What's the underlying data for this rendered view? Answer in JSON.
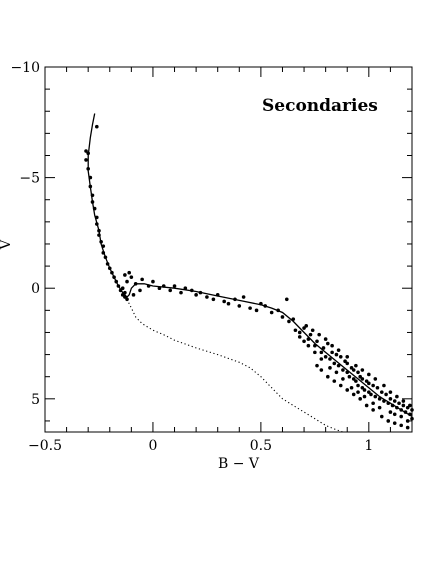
{
  "chart_data": {
    "type": "scatter",
    "title": "Secondaries",
    "xlabel": "B − V",
    "ylabel": "V",
    "xlim": [
      -0.5,
      1.2
    ],
    "ylim": [
      6.5,
      -10
    ],
    "y_axis_inverted": true,
    "grid": false,
    "x_ticks": [
      {
        "value": -0.5,
        "label": "−0.5"
      },
      {
        "value": 0,
        "label": "0"
      },
      {
        "value": 0.5,
        "label": "0.5"
      },
      {
        "value": 1,
        "label": "1"
      }
    ],
    "y_ticks": [
      {
        "value": -10,
        "label": "−10"
      },
      {
        "value": -5,
        "label": "−5"
      },
      {
        "value": 0,
        "label": "0"
      },
      {
        "value": 5,
        "label": "5"
      }
    ],
    "series": [
      {
        "style": "points",
        "color": "#000000",
        "points": [
          [
            -0.31,
            -6.2
          ],
          [
            -0.31,
            -5.8
          ],
          [
            -0.3,
            -5.4
          ],
          [
            -0.3,
            -6.1
          ],
          [
            -0.29,
            -5.0
          ],
          [
            -0.29,
            -4.6
          ],
          [
            -0.28,
            -4.2
          ],
          [
            -0.28,
            -3.9
          ],
          [
            -0.27,
            -3.6
          ],
          [
            -0.26,
            -3.2
          ],
          [
            -0.26,
            -2.9
          ],
          [
            -0.25,
            -2.6
          ],
          [
            -0.25,
            -2.4
          ],
          [
            -0.24,
            -2.1
          ],
          [
            -0.23,
            -1.9
          ],
          [
            -0.23,
            -1.6
          ],
          [
            -0.22,
            -1.4
          ],
          [
            -0.21,
            -1.1
          ],
          [
            -0.2,
            -0.9
          ],
          [
            -0.19,
            -0.7
          ],
          [
            -0.18,
            -0.5
          ],
          [
            -0.17,
            -0.3
          ],
          [
            -0.16,
            -0.1
          ],
          [
            -0.15,
            0.1
          ],
          [
            -0.14,
            0.3
          ],
          [
            -0.13,
            0.4
          ],
          [
            -0.12,
            0.5
          ],
          [
            -0.13,
            0.2
          ],
          [
            -0.14,
            0.0
          ],
          [
            -0.12,
            -0.3
          ],
          [
            -0.1,
            -0.5
          ],
          [
            -0.11,
            -0.7
          ],
          [
            -0.13,
            -0.6
          ],
          [
            -0.08,
            -0.2
          ],
          [
            -0.05,
            -0.4
          ],
          [
            -0.02,
            -0.1
          ],
          [
            0.0,
            -0.3
          ],
          [
            0.03,
            0.0
          ],
          [
            -0.06,
            0.1
          ],
          [
            -0.09,
            0.3
          ],
          [
            -0.26,
            -7.3
          ],
          [
            0.05,
            -0.1
          ],
          [
            0.08,
            0.1
          ],
          [
            0.1,
            -0.1
          ],
          [
            0.13,
            0.2
          ],
          [
            0.15,
            0.0
          ],
          [
            0.18,
            0.1
          ],
          [
            0.2,
            0.3
          ],
          [
            0.22,
            0.2
          ],
          [
            0.25,
            0.4
          ],
          [
            0.28,
            0.5
          ],
          [
            0.3,
            0.3
          ],
          [
            0.33,
            0.6
          ],
          [
            0.35,
            0.7
          ],
          [
            0.38,
            0.5
          ],
          [
            0.4,
            0.8
          ],
          [
            0.42,
            0.4
          ],
          [
            0.45,
            0.9
          ],
          [
            0.48,
            1.0
          ],
          [
            0.5,
            0.7
          ],
          [
            0.52,
            0.8
          ],
          [
            0.55,
            1.1
          ],
          [
            0.58,
            1.0
          ],
          [
            0.6,
            1.3
          ],
          [
            0.62,
            0.5
          ],
          [
            0.63,
            1.5
          ],
          [
            0.65,
            1.4
          ],
          [
            0.66,
            1.9
          ],
          [
            0.68,
            2.0
          ],
          [
            0.7,
            1.8
          ],
          [
            0.72,
            2.3
          ],
          [
            0.73,
            2.1
          ],
          [
            0.75,
            2.6
          ],
          [
            0.76,
            2.4
          ],
          [
            0.78,
            2.9
          ],
          [
            0.79,
            2.7
          ],
          [
            0.8,
            3.1
          ],
          [
            0.81,
            2.5
          ],
          [
            0.82,
            3.2
          ],
          [
            0.83,
            2.9
          ],
          [
            0.84,
            3.4
          ],
          [
            0.85,
            3.0
          ],
          [
            0.86,
            3.5
          ],
          [
            0.87,
            3.1
          ],
          [
            0.88,
            3.7
          ],
          [
            0.89,
            3.3
          ],
          [
            0.9,
            3.8
          ],
          [
            0.9,
            3.4
          ],
          [
            0.91,
            4.0
          ],
          [
            0.92,
            3.6
          ],
          [
            0.93,
            4.1
          ],
          [
            0.93,
            3.7
          ],
          [
            0.94,
            4.2
          ],
          [
            0.95,
            3.8
          ],
          [
            0.95,
            4.4
          ],
          [
            0.96,
            4.0
          ],
          [
            0.97,
            4.5
          ],
          [
            0.97,
            4.1
          ],
          [
            0.98,
            4.6
          ],
          [
            0.99,
            4.2
          ],
          [
            1.0,
            4.7
          ],
          [
            1.0,
            4.3
          ],
          [
            1.01,
            4.8
          ],
          [
            1.02,
            4.4
          ],
          [
            1.03,
            4.9
          ],
          [
            1.04,
            4.5
          ],
          [
            1.05,
            5.0
          ],
          [
            1.06,
            4.7
          ],
          [
            1.07,
            5.1
          ],
          [
            1.08,
            4.8
          ],
          [
            1.09,
            5.2
          ],
          [
            1.1,
            5.0
          ],
          [
            1.11,
            5.3
          ],
          [
            1.12,
            5.1
          ],
          [
            1.13,
            5.4
          ],
          [
            1.14,
            5.2
          ],
          [
            1.15,
            5.5
          ],
          [
            1.16,
            5.3
          ],
          [
            1.17,
            5.6
          ],
          [
            1.18,
            5.4
          ],
          [
            1.19,
            5.7
          ],
          [
            1.2,
            5.5
          ],
          [
            1.2,
            5.9
          ],
          [
            1.18,
            6.0
          ],
          [
            1.15,
            5.8
          ],
          [
            1.12,
            5.7
          ],
          [
            1.1,
            5.6
          ],
          [
            1.05,
            5.4
          ],
          [
            1.02,
            5.2
          ],
          [
            0.98,
            4.9
          ],
          [
            0.95,
            4.7
          ],
          [
            0.92,
            4.5
          ],
          [
            0.88,
            4.1
          ],
          [
            0.85,
            3.8
          ],
          [
            0.82,
            3.6
          ],
          [
            0.78,
            3.2
          ],
          [
            0.75,
            2.9
          ],
          [
            0.72,
            2.6
          ],
          [
            0.7,
            2.4
          ],
          [
            0.68,
            2.2
          ],
          [
            1.0,
            3.9
          ],
          [
            0.97,
            3.7
          ],
          [
            1.03,
            4.1
          ],
          [
            1.07,
            4.4
          ],
          [
            1.1,
            4.7
          ],
          [
            1.13,
            4.9
          ],
          [
            1.16,
            5.1
          ],
          [
            1.19,
            5.3
          ],
          [
            0.94,
            3.5
          ],
          [
            0.9,
            3.1
          ],
          [
            0.86,
            2.8
          ],
          [
            0.83,
            2.6
          ],
          [
            0.8,
            2.3
          ],
          [
            0.77,
            2.1
          ],
          [
            0.74,
            1.9
          ],
          [
            0.71,
            1.7
          ],
          [
            0.96,
            5.0
          ],
          [
            0.99,
            5.3
          ],
          [
            1.02,
            5.5
          ],
          [
            1.06,
            5.8
          ],
          [
            1.09,
            6.0
          ],
          [
            1.12,
            6.1
          ],
          [
            1.15,
            6.2
          ],
          [
            1.18,
            6.3
          ],
          [
            0.93,
            4.8
          ],
          [
            0.9,
            4.6
          ],
          [
            0.87,
            4.4
          ],
          [
            0.84,
            4.2
          ],
          [
            0.81,
            4.0
          ],
          [
            0.78,
            3.7
          ],
          [
            0.76,
            3.5
          ]
        ]
      },
      {
        "style": "solid-line",
        "color": "#000000",
        "points": [
          [
            -0.27,
            -7.9
          ],
          [
            -0.28,
            -7.4
          ],
          [
            -0.29,
            -6.8
          ],
          [
            -0.3,
            -6.0
          ],
          [
            -0.3,
            -5.3
          ],
          [
            -0.29,
            -4.6
          ],
          [
            -0.28,
            -3.9
          ],
          [
            -0.27,
            -3.3
          ],
          [
            -0.25,
            -2.6
          ],
          [
            -0.24,
            -2.0
          ],
          [
            -0.22,
            -1.4
          ],
          [
            -0.2,
            -0.9
          ],
          [
            -0.18,
            -0.5
          ],
          [
            -0.16,
            -0.1
          ],
          [
            -0.14,
            0.2
          ],
          [
            -0.12,
            0.4
          ],
          [
            -0.11,
            0.3
          ],
          [
            -0.1,
            0.0
          ],
          [
            -0.08,
            -0.2
          ],
          [
            -0.04,
            -0.2
          ],
          [
            0.0,
            -0.1
          ],
          [
            0.1,
            0.0
          ],
          [
            0.2,
            0.15
          ],
          [
            0.3,
            0.35
          ],
          [
            0.4,
            0.55
          ],
          [
            0.5,
            0.75
          ],
          [
            0.55,
            0.9
          ],
          [
            0.6,
            1.1
          ],
          [
            0.65,
            1.5
          ],
          [
            0.7,
            2.0
          ],
          [
            0.75,
            2.5
          ],
          [
            0.8,
            2.9
          ],
          [
            0.85,
            3.3
          ],
          [
            0.9,
            3.7
          ],
          [
            0.95,
            4.1
          ],
          [
            1.0,
            4.5
          ],
          [
            1.05,
            4.9
          ],
          [
            1.1,
            5.2
          ],
          [
            1.15,
            5.5
          ],
          [
            1.2,
            5.8
          ]
        ]
      },
      {
        "style": "dotted-line",
        "color": "#000000",
        "points": [
          [
            -0.12,
            0.5
          ],
          [
            -0.1,
            0.9
          ],
          [
            -0.08,
            1.3
          ],
          [
            -0.05,
            1.6
          ],
          [
            0.0,
            1.9
          ],
          [
            0.05,
            2.1
          ],
          [
            0.1,
            2.35
          ],
          [
            0.2,
            2.7
          ],
          [
            0.3,
            3.0
          ],
          [
            0.4,
            3.35
          ],
          [
            0.45,
            3.6
          ],
          [
            0.5,
            4.0
          ],
          [
            0.55,
            4.5
          ],
          [
            0.6,
            5.0
          ],
          [
            0.65,
            5.3
          ],
          [
            0.7,
            5.6
          ],
          [
            0.75,
            5.9
          ],
          [
            0.8,
            6.2
          ],
          [
            0.85,
            6.4
          ],
          [
            0.88,
            6.5
          ]
        ]
      }
    ]
  }
}
